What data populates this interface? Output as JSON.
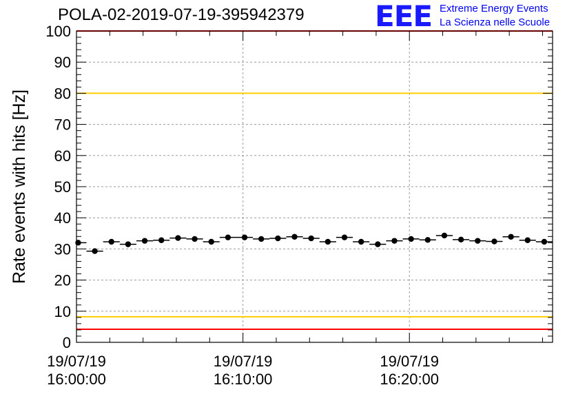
{
  "title": "POLA-02-2019-07-19-395942379",
  "logo": {
    "mark": "EEE",
    "line1": "Extreme Energy Events",
    "line2": "La Scienza nelle Scuole"
  },
  "chart_data": {
    "type": "scatter",
    "ylabel": "Rate events with hits [Hz]",
    "ylim": [
      0,
      100
    ],
    "yticks": [
      0,
      10,
      20,
      30,
      40,
      50,
      60,
      70,
      80,
      90,
      100
    ],
    "xlim_minutes": [
      0,
      28.6
    ],
    "xticks": [
      {
        "minute": 0,
        "line1": "19/07/19",
        "line2": "16:00:00"
      },
      {
        "minute": 10,
        "line1": "19/07/19",
        "line2": "16:10:00"
      },
      {
        "minute": 20,
        "line1": "19/07/19",
        "line2": "16:20:00"
      }
    ],
    "grid": true,
    "bin_width_minutes": 1,
    "series": [
      {
        "x_minutes": [
          0.1,
          1.1,
          2.1,
          3.1,
          4.1,
          5.1,
          6.1,
          7.1,
          8.1,
          9.1,
          10.1,
          11.1,
          12.1,
          13.1,
          14.1,
          15.1,
          16.1,
          17.1,
          18.1,
          19.1,
          20.1,
          21.1,
          22.1,
          23.1,
          24.1,
          25.1,
          26.1,
          27.1,
          28.1
        ],
        "values": [
          32.0,
          29.3,
          32.3,
          31.5,
          32.6,
          32.8,
          33.5,
          33.2,
          32.3,
          33.7,
          33.7,
          33.2,
          33.4,
          33.9,
          33.4,
          32.3,
          33.7,
          32.3,
          31.5,
          32.6,
          33.2,
          32.9,
          34.3,
          33.0,
          32.6,
          32.4,
          33.9,
          32.8,
          32.3
        ]
      }
    ],
    "reference_lines": [
      {
        "value": 4.2,
        "color": "#ff0000"
      },
      {
        "value": 8.2,
        "color": "#ffcc00"
      },
      {
        "value": 80,
        "color": "#ffcc00"
      },
      {
        "value": 100,
        "color": "#ff0000"
      }
    ],
    "colors": {
      "marker": "#000000",
      "grid": "#9a9a9a"
    }
  }
}
